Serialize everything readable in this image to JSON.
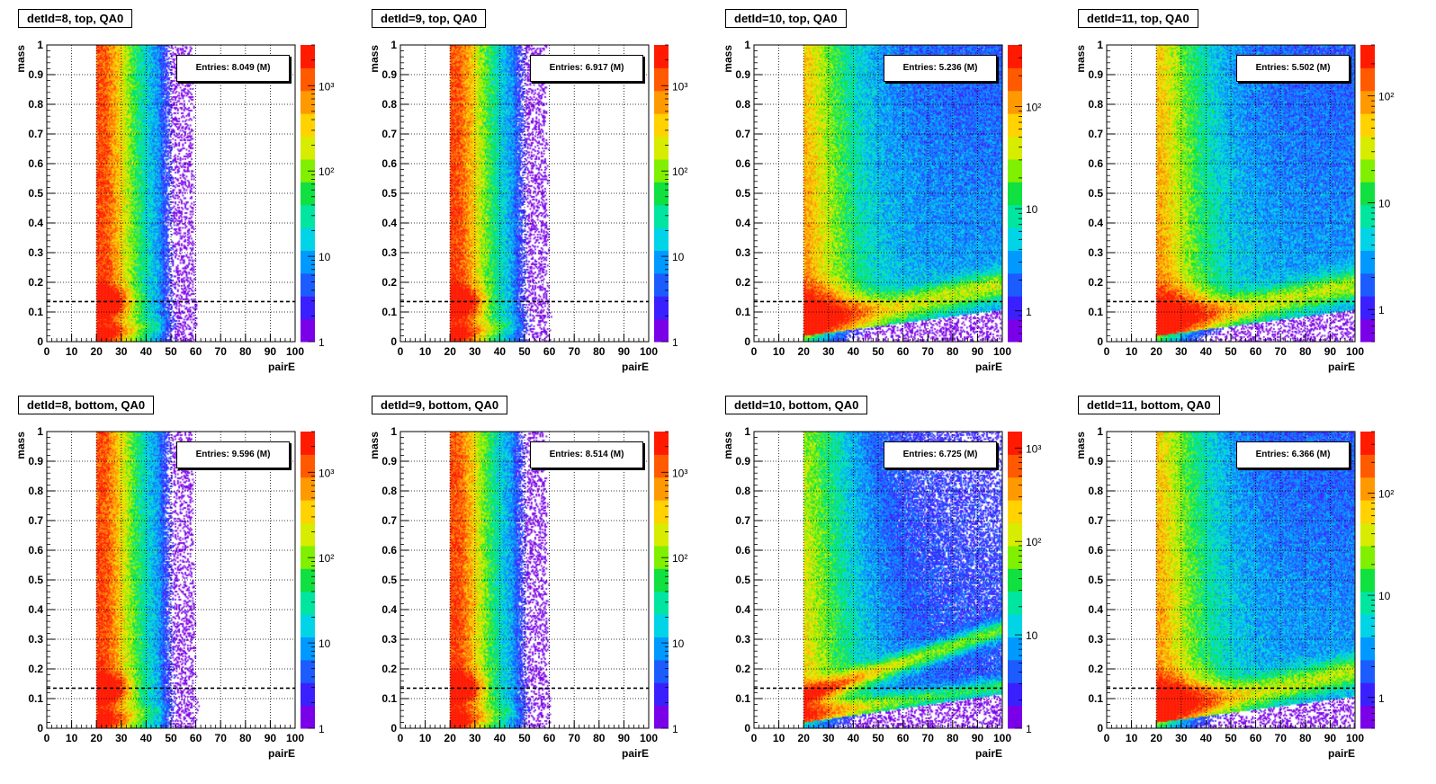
{
  "colors": {
    "palette": [
      "#7a00e8",
      "#3b20ff",
      "#1c5cff",
      "#0099ff",
      "#00d4e6",
      "#00e6a0",
      "#10e040",
      "#80f000",
      "#d8ec00",
      "#ffd200",
      "#ff9900",
      "#ff5a00",
      "#ff1a00"
    ],
    "reference_line": "#000000",
    "background": "#ffffff"
  },
  "chart_data": [
    {
      "type": "heatmap",
      "title": "detId=8, top, QA0",
      "entries": "Entries: 8.049 (M)",
      "xlabel": "pairE",
      "ylabel": "mass",
      "xlim": [
        0,
        100
      ],
      "ylim": [
        0,
        1
      ],
      "xticks": [
        "0",
        "10",
        "20",
        "30",
        "40",
        "50",
        "60",
        "70",
        "80",
        "90",
        "100"
      ],
      "yticks": [
        "0",
        "0.1",
        "0.2",
        "0.3",
        "0.4",
        "0.5",
        "0.6",
        "0.7",
        "0.8",
        "0.9",
        "1"
      ],
      "zscale": "log",
      "zlim": [
        1,
        3000
      ],
      "zticks": [
        {
          "v": 1,
          "t": "1"
        },
        {
          "v": 10,
          "t": "10"
        },
        {
          "v": 100,
          "t": "10²"
        },
        {
          "v": 1000,
          "t": "10³"
        }
      ],
      "reference_line_y": 0.135,
      "x_min_data": 20,
      "shape": "compact",
      "grid": true
    },
    {
      "type": "heatmap",
      "title": "detId=9, top, QA0",
      "entries": "Entries: 6.917 (M)",
      "xlabel": "pairE",
      "ylabel": "mass",
      "xlim": [
        0,
        100
      ],
      "ylim": [
        0,
        1
      ],
      "xticks": [
        "0",
        "10",
        "20",
        "30",
        "40",
        "50",
        "60",
        "70",
        "80",
        "90",
        "100"
      ],
      "yticks": [
        "0",
        "0.1",
        "0.2",
        "0.3",
        "0.4",
        "0.5",
        "0.6",
        "0.7",
        "0.8",
        "0.9",
        "1"
      ],
      "zscale": "log",
      "zlim": [
        1,
        3000
      ],
      "zticks": [
        {
          "v": 1,
          "t": "1"
        },
        {
          "v": 10,
          "t": "10"
        },
        {
          "v": 100,
          "t": "10²"
        },
        {
          "v": 1000,
          "t": "10³"
        }
      ],
      "reference_line_y": 0.135,
      "x_min_data": 20,
      "shape": "compact",
      "grid": true
    },
    {
      "type": "heatmap",
      "title": "detId=10, top, QA0",
      "entries": "Entries: 5.236 (M)",
      "xlabel": "pairE",
      "ylabel": "mass",
      "xlim": [
        0,
        100
      ],
      "ylim": [
        0,
        1
      ],
      "xticks": [
        "0",
        "10",
        "20",
        "30",
        "40",
        "50",
        "60",
        "70",
        "80",
        "90",
        "100"
      ],
      "yticks": [
        "0",
        "0.1",
        "0.2",
        "0.3",
        "0.4",
        "0.5",
        "0.6",
        "0.7",
        "0.8",
        "0.9",
        "1"
      ],
      "zscale": "log",
      "zlim": [
        0.5,
        400
      ],
      "zticks": [
        {
          "v": 1,
          "t": "1"
        },
        {
          "v": 10,
          "t": "10"
        },
        {
          "v": 100,
          "t": "10²"
        }
      ],
      "reference_line_y": 0.135,
      "x_min_data": 20,
      "shape": "broad",
      "grid": true
    },
    {
      "type": "heatmap",
      "title": "detId=11, top, QA0",
      "entries": "Entries: 5.502 (M)",
      "xlabel": "pairE",
      "ylabel": "mass",
      "xlim": [
        0,
        100
      ],
      "ylim": [
        0,
        1
      ],
      "xticks": [
        "0",
        "10",
        "20",
        "30",
        "40",
        "50",
        "60",
        "70",
        "80",
        "90",
        "100"
      ],
      "yticks": [
        "0",
        "0.1",
        "0.2",
        "0.3",
        "0.4",
        "0.5",
        "0.6",
        "0.7",
        "0.8",
        "0.9",
        "1"
      ],
      "zscale": "log",
      "zlim": [
        0.5,
        300
      ],
      "zticks": [
        {
          "v": 1,
          "t": "1"
        },
        {
          "v": 10,
          "t": "10"
        },
        {
          "v": 100,
          "t": "10²"
        }
      ],
      "reference_line_y": 0.135,
      "x_min_data": 20,
      "shape": "broad",
      "grid": true
    },
    {
      "type": "heatmap",
      "title": "detId=8, bottom, QA0",
      "entries": "Entries: 9.596 (M)",
      "xlabel": "pairE",
      "ylabel": "mass",
      "xlim": [
        0,
        100
      ],
      "ylim": [
        0,
        1
      ],
      "xticks": [
        "0",
        "10",
        "20",
        "30",
        "40",
        "50",
        "60",
        "70",
        "80",
        "90",
        "100"
      ],
      "yticks": [
        "0",
        "0.1",
        "0.2",
        "0.3",
        "0.4",
        "0.5",
        "0.6",
        "0.7",
        "0.8",
        "0.9",
        "1"
      ],
      "zscale": "log",
      "zlim": [
        1,
        3000
      ],
      "zticks": [
        {
          "v": 1,
          "t": "1"
        },
        {
          "v": 10,
          "t": "10"
        },
        {
          "v": 100,
          "t": "10²"
        },
        {
          "v": 1000,
          "t": "10³"
        }
      ],
      "reference_line_y": 0.135,
      "x_min_data": 20,
      "shape": "compact",
      "grid": true
    },
    {
      "type": "heatmap",
      "title": "detId=9, bottom, QA0",
      "entries": "Entries: 8.514 (M)",
      "xlabel": "pairE",
      "ylabel": "mass",
      "xlim": [
        0,
        100
      ],
      "ylim": [
        0,
        1
      ],
      "xticks": [
        "0",
        "10",
        "20",
        "30",
        "40",
        "50",
        "60",
        "70",
        "80",
        "90",
        "100"
      ],
      "yticks": [
        "0",
        "0.1",
        "0.2",
        "0.3",
        "0.4",
        "0.5",
        "0.6",
        "0.7",
        "0.8",
        "0.9",
        "1"
      ],
      "zscale": "log",
      "zlim": [
        1,
        3000
      ],
      "zticks": [
        {
          "v": 1,
          "t": "1"
        },
        {
          "v": 10,
          "t": "10"
        },
        {
          "v": 100,
          "t": "10²"
        },
        {
          "v": 1000,
          "t": "10³"
        }
      ],
      "reference_line_y": 0.135,
      "x_min_data": 20,
      "shape": "compact",
      "grid": true
    },
    {
      "type": "heatmap",
      "title": "detId=10, bottom, QA0",
      "entries": "Entries: 6.725 (M)",
      "xlabel": "pairE",
      "ylabel": "mass",
      "xlim": [
        0,
        100
      ],
      "ylim": [
        0,
        1
      ],
      "xticks": [
        "0",
        "10",
        "20",
        "30",
        "40",
        "50",
        "60",
        "70",
        "80",
        "90",
        "100"
      ],
      "yticks": [
        "0",
        "0.1",
        "0.2",
        "0.3",
        "0.4",
        "0.5",
        "0.6",
        "0.7",
        "0.8",
        "0.9",
        "1"
      ],
      "zscale": "log",
      "zlim": [
        1,
        1500
      ],
      "zticks": [
        {
          "v": 1,
          "t": "1"
        },
        {
          "v": 10,
          "t": "10"
        },
        {
          "v": 100,
          "t": "10²"
        },
        {
          "v": 1000,
          "t": "10³"
        }
      ],
      "reference_line_y": 0.135,
      "x_min_data": 20,
      "shape": "band",
      "grid": true
    },
    {
      "type": "heatmap",
      "title": "detId=11, bottom, QA0",
      "entries": "Entries: 6.366 (M)",
      "xlabel": "pairE",
      "ylabel": "mass",
      "xlim": [
        0,
        100
      ],
      "ylim": [
        0,
        1
      ],
      "xticks": [
        "0",
        "10",
        "20",
        "30",
        "40",
        "50",
        "60",
        "70",
        "80",
        "90",
        "100"
      ],
      "yticks": [
        "0",
        "0.1",
        "0.2",
        "0.3",
        "0.4",
        "0.5",
        "0.6",
        "0.7",
        "0.8",
        "0.9",
        "1"
      ],
      "zscale": "log",
      "zlim": [
        0.5,
        400
      ],
      "zticks": [
        {
          "v": 1,
          "t": "1"
        },
        {
          "v": 10,
          "t": "10"
        },
        {
          "v": 100,
          "t": "10²"
        }
      ],
      "reference_line_y": 0.135,
      "x_min_data": 20,
      "shape": "broad",
      "grid": true
    }
  ]
}
